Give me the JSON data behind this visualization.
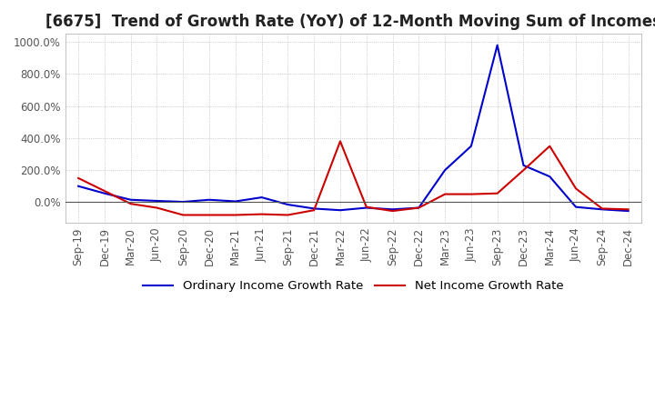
{
  "title": "[6675]  Trend of Growth Rate (YoY) of 12-Month Moving Sum of Incomes",
  "x_labels": [
    "Sep-19",
    "Dec-19",
    "Mar-20",
    "Jun-20",
    "Sep-20",
    "Dec-20",
    "Mar-21",
    "Jun-21",
    "Sep-21",
    "Dec-21",
    "Mar-22",
    "Jun-22",
    "Sep-22",
    "Dec-22",
    "Mar-23",
    "Jun-23",
    "Sep-23",
    "Dec-23",
    "Mar-24",
    "Jun-24",
    "Sep-24",
    "Dec-24"
  ],
  "ordinary_income": [
    100,
    55,
    15,
    8,
    2,
    15,
    5,
    30,
    -15,
    -40,
    -50,
    -35,
    -45,
    -35,
    200,
    350,
    980,
    230,
    160,
    -30,
    -45,
    -55
  ],
  "net_income": [
    150,
    70,
    -10,
    -35,
    -80,
    -80,
    -80,
    -75,
    -80,
    -50,
    380,
    -30,
    -55,
    -35,
    50,
    50,
    55,
    200,
    350,
    85,
    -40,
    -45
  ],
  "ordinary_color": "#0000cc",
  "net_color": "#cc0000",
  "background_color": "#ffffff",
  "grid_color": "#aaaaaa",
  "ylim": [
    -130,
    1050
  ],
  "yticks": [
    0,
    200,
    400,
    600,
    800,
    1000
  ],
  "legend_labels": [
    "Ordinary Income Growth Rate",
    "Net Income Growth Rate"
  ],
  "title_fontsize": 12,
  "tick_fontsize": 8.5,
  "legend_fontsize": 9.5
}
